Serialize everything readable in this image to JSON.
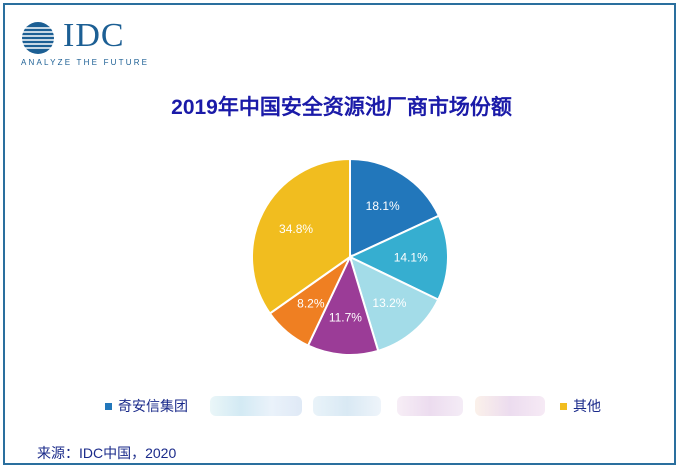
{
  "logo": {
    "wordmark": "IDC",
    "tagline": "ANALYZE THE FUTURE"
  },
  "title": "2019年中国安全资源池厂商市场份额",
  "source": "来源：IDC中国，2020",
  "chart_data": {
    "type": "pie",
    "title": "2019年中国安全资源池厂商市场份额",
    "slices": [
      {
        "name": "奇安信集团",
        "value": 18.1,
        "label": "18.1%",
        "color": "#2277bb"
      },
      {
        "name": "",
        "value": 14.1,
        "label": "14.1%",
        "color": "#36aed0"
      },
      {
        "name": "",
        "value": 13.2,
        "label": "13.2%",
        "color": "#a3dce8"
      },
      {
        "name": "",
        "value": 11.7,
        "label": "11.7%",
        "color": "#9b3c97"
      },
      {
        "name": "",
        "value": 8.2,
        "label": "8.2%",
        "color": "#ef7f22"
      },
      {
        "name": "其他",
        "value": 34.8,
        "label": "34.8%",
        "color": "#f1bd1f"
      }
    ],
    "legend_position": "bottom",
    "legend_obscured": [
      1,
      2,
      3,
      4
    ]
  }
}
